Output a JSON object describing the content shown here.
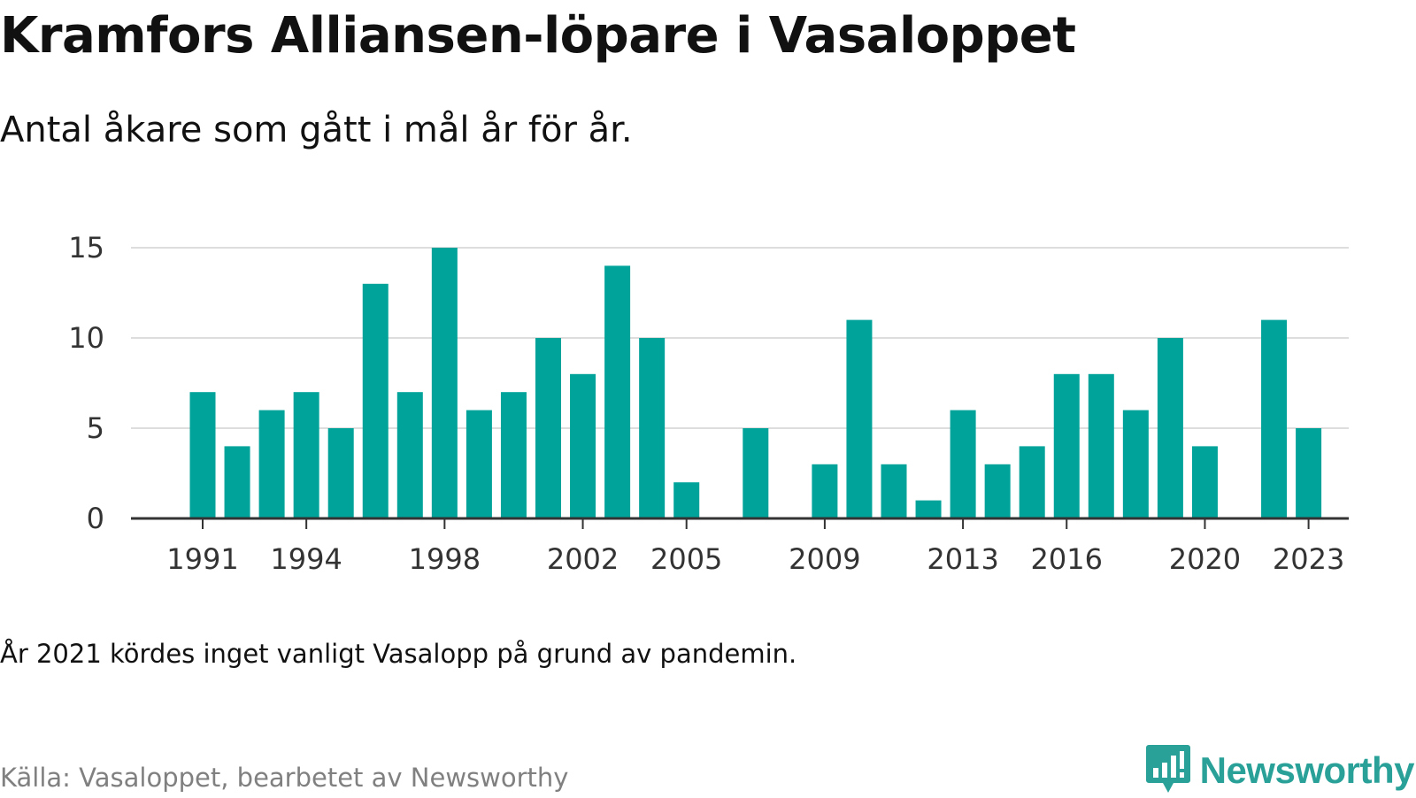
{
  "header": {
    "title": "Kramfors Alliansen-löpare i Vasaloppet",
    "subtitle": "Antal åkare som gått i mål år för år."
  },
  "footer": {
    "note": "År 2021 kördes inget vanligt Vasalopp på grund av pandemin.",
    "source": "Källa: Vasaloppet, bearbetet av Newsworthy",
    "brand": "Newsworthy",
    "brand_icon": "newsworthy-logo-icon"
  },
  "colors": {
    "bar": "#00a39a",
    "grid": "#dddddd",
    "axis": "#333333",
    "brand": "#2aa198"
  },
  "chart_data": {
    "type": "bar",
    "title": "Kramfors Alliansen-löpare i Vasaloppet",
    "subtitle": "Antal åkare som gått i mål år för år.",
    "xlabel": "",
    "ylabel": "",
    "x": [
      1991,
      1992,
      1993,
      1994,
      1995,
      1996,
      1997,
      1998,
      1999,
      2000,
      2001,
      2002,
      2003,
      2004,
      2005,
      2006,
      2007,
      2008,
      2009,
      2010,
      2011,
      2012,
      2013,
      2014,
      2015,
      2016,
      2017,
      2018,
      2019,
      2020,
      2021,
      2022,
      2023
    ],
    "values": [
      7,
      4,
      6,
      7,
      5,
      13,
      7,
      15,
      6,
      7,
      10,
      8,
      14,
      10,
      2,
      0,
      5,
      0,
      3,
      11,
      3,
      1,
      6,
      3,
      4,
      8,
      8,
      6,
      10,
      4,
      0,
      11,
      5
    ],
    "x_ticks": [
      1991,
      1994,
      1998,
      2002,
      2005,
      2009,
      2013,
      2016,
      2020,
      2023
    ],
    "y_ticks": [
      0,
      5,
      10,
      15
    ],
    "ylim": [
      0,
      15
    ],
    "grid": true,
    "legend": "none"
  }
}
